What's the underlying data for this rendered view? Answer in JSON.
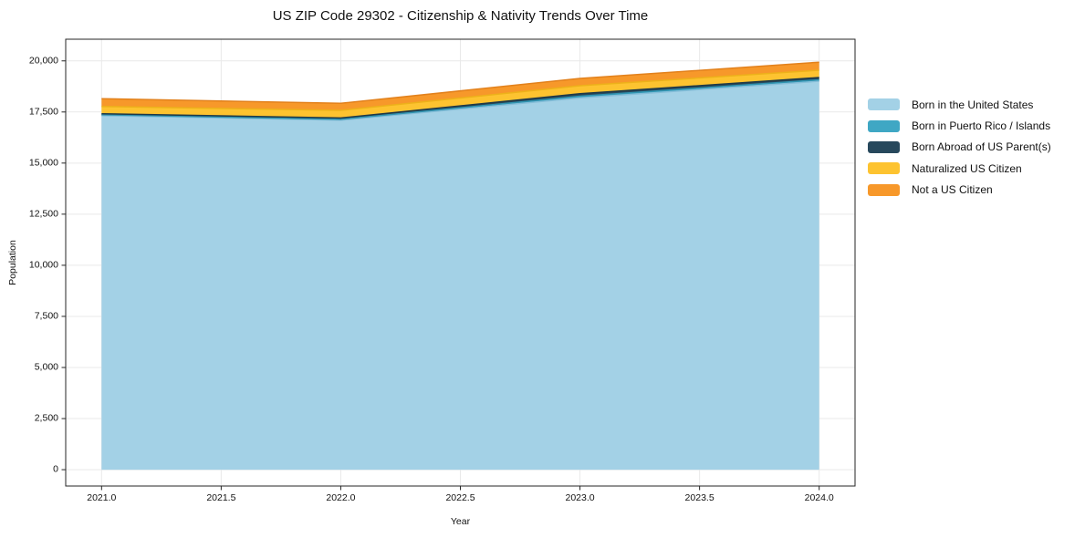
{
  "chart_data": {
    "type": "area",
    "stacked": true,
    "title": "US ZIP Code 29302 - Citizenship & Nativity Trends Over Time",
    "xlabel": "Year",
    "ylabel": "Population",
    "x": [
      2021,
      2022,
      2023,
      2024
    ],
    "series": [
      {
        "name": "Born in the United States",
        "color": "#a3d1e6",
        "edge_color": "#85bdd8",
        "values": [
          17320,
          17100,
          18190,
          19005
        ]
      },
      {
        "name": "Born in Puerto Rico / Islands",
        "color": "#3fa7c4",
        "edge_color": "#2f93b0",
        "values": [
          45,
          40,
          80,
          70
        ]
      },
      {
        "name": "Born Abroad of US Parent(s)",
        "color": "#27485c",
        "edge_color": "#1e3948",
        "values": [
          50,
          65,
          125,
          110
        ]
      },
      {
        "name": "Naturalized US Citizen",
        "color": "#fdc330",
        "edge_color": "#edb11a",
        "values": [
          355,
          375,
          390,
          360
        ]
      },
      {
        "name": "Not a US Citizen",
        "color": "#f7982a",
        "edge_color": "#e2811c",
        "values": [
          380,
          345,
          355,
          390
        ]
      }
    ],
    "xlim": [
      2020.85,
      2024.15
    ],
    "ylim": [
      -800,
      21060
    ],
    "x_ticks": {
      "values": [
        2021.0,
        2021.5,
        2022.0,
        2022.5,
        2023.0,
        2023.5,
        2024.0
      ],
      "labels": [
        "2021.0",
        "2021.5",
        "2022.0",
        "2022.5",
        "2023.0",
        "2023.5",
        "2024.0"
      ]
    },
    "y_ticks": {
      "values": [
        0,
        2500,
        5000,
        7500,
        10000,
        12500,
        15000,
        17500,
        20000
      ],
      "labels": [
        "0",
        "2,500",
        "5,000",
        "7,500",
        "10,000",
        "12,500",
        "15,000",
        "17,500",
        "20,000"
      ]
    },
    "grid": true,
    "grid_color": "#e9e9e9",
    "spine_color": "#262626",
    "legend_position": "right"
  }
}
